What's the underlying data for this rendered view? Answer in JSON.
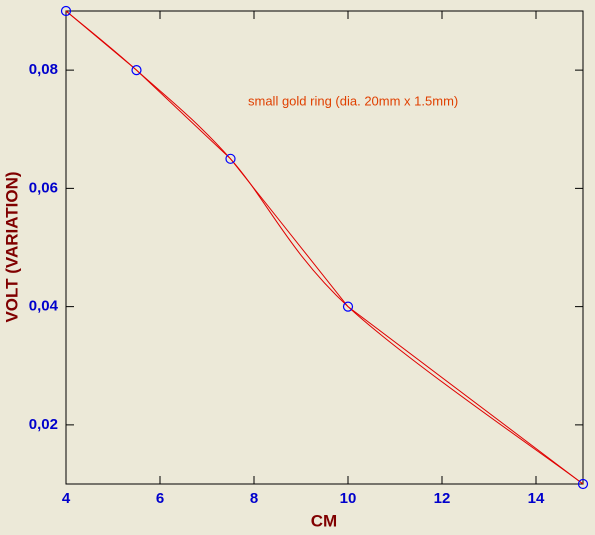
{
  "chart_data": {
    "type": "line",
    "xlabel": "CM",
    "ylabel": "VOLT (VARIATION)",
    "annotation": "small gold ring (dia. 20mm x 1.5mm)",
    "xlim": [
      4,
      15
    ],
    "xticks": [
      4,
      6,
      8,
      10,
      12,
      14
    ],
    "ylim": [
      0.01,
      0.09
    ],
    "yticks": [
      {
        "value": 0.02,
        "label": "0,02"
      },
      {
        "value": 0.04,
        "label": "0,04"
      },
      {
        "value": 0.06,
        "label": "0,06"
      },
      {
        "value": 0.08,
        "label": "0,08"
      }
    ],
    "series": [
      {
        "color": "#e00000",
        "marker_color": "#0000ff",
        "interpolations": [
          "linear",
          "spline"
        ],
        "x": [
          4,
          5.5,
          7.5,
          10,
          15
        ],
        "values": [
          0.09,
          0.08,
          0.065,
          0.04,
          0.01
        ]
      }
    ]
  }
}
